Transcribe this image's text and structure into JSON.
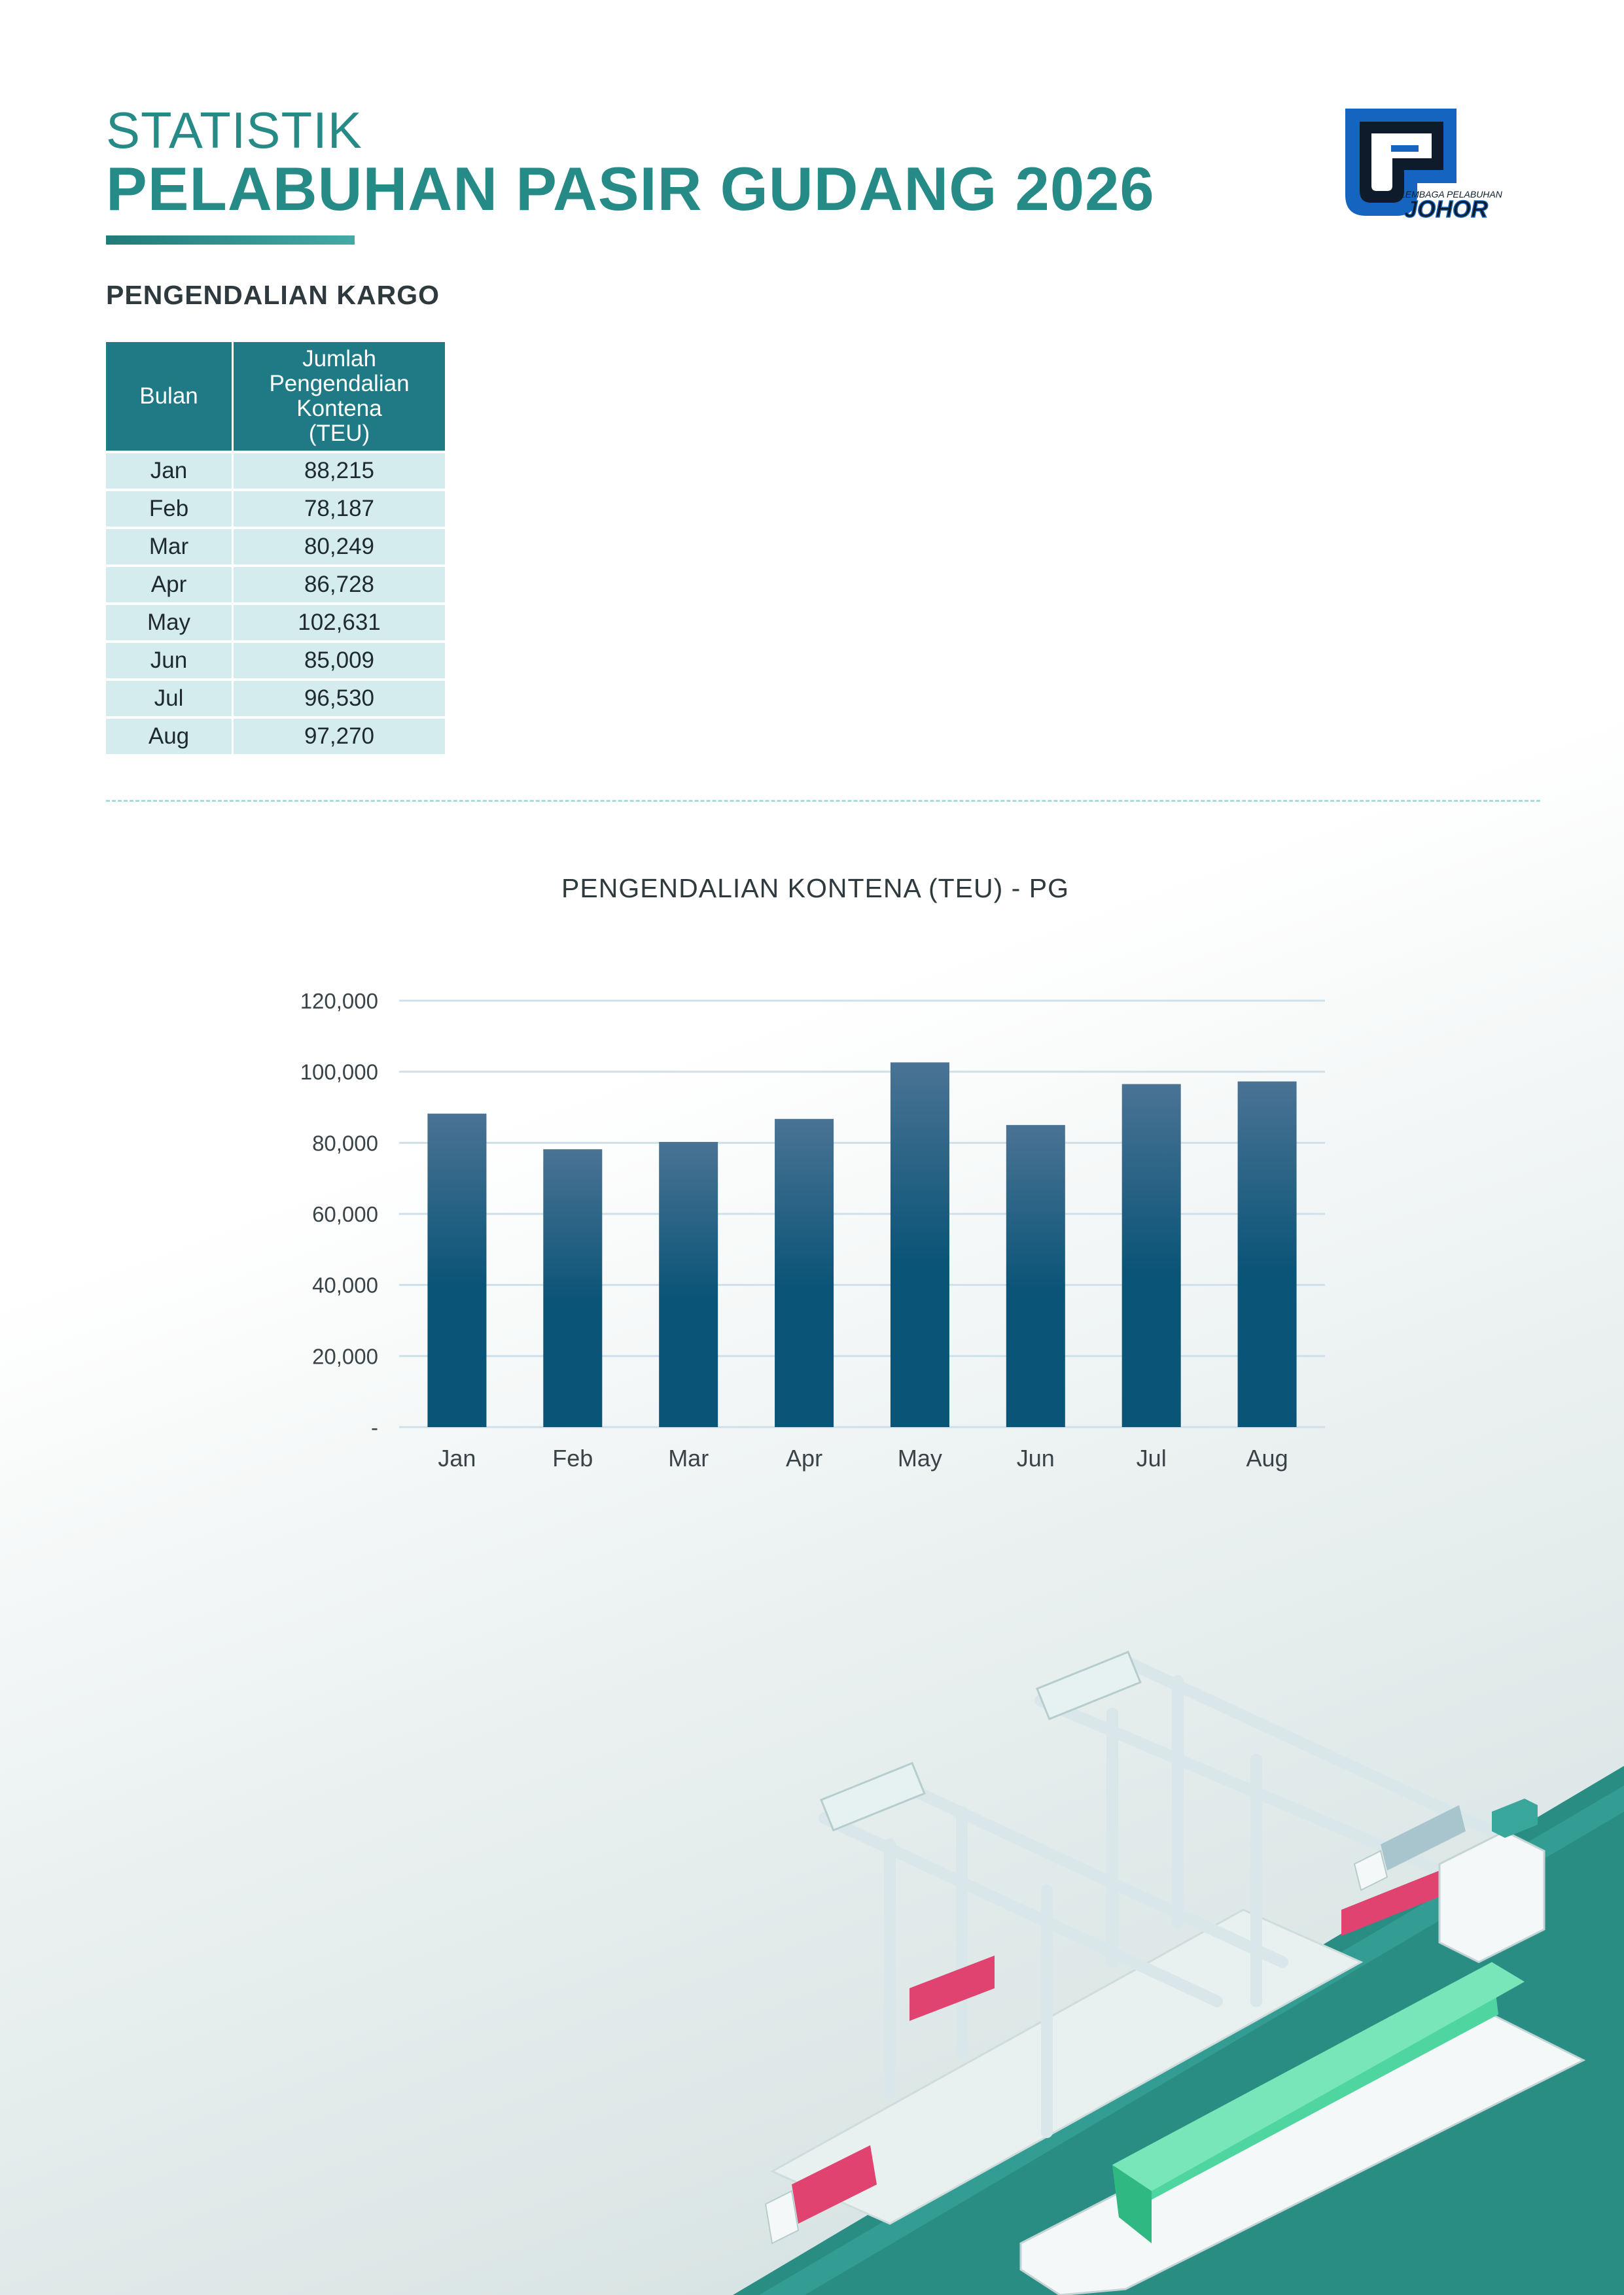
{
  "header": {
    "title_top": "STATISTIK",
    "title_main": "PELABUHAN PASIR GUDANG 2026"
  },
  "logo": {
    "text_small": "LEMBAGA PELABUHAN",
    "text_big": "JOHOR",
    "color_primary": "#1565c0",
    "color_dark": "#0d1b2a"
  },
  "section": {
    "heading": "PENGENDALIAN KARGO"
  },
  "table": {
    "headers": [
      "Bulan",
      "Jumlah Pengendalian Kontena (TEU)"
    ],
    "header_lines": [
      "Jumlah",
      "Pengendalian",
      "Kontena",
      "(TEU)"
    ],
    "rows": [
      [
        "Jan",
        "88,215"
      ],
      [
        "Feb",
        "78,187"
      ],
      [
        "Mar",
        "80,249"
      ],
      [
        "Apr",
        "86,728"
      ],
      [
        "May",
        "102,631"
      ],
      [
        "Jun",
        "85,009"
      ],
      [
        "Jul",
        "96,530"
      ],
      [
        "Aug",
        "97,270"
      ]
    ]
  },
  "chart_data": {
    "type": "bar",
    "title": "PENGENDALIAN KONTENA (TEU) - PG",
    "categories": [
      "Jan",
      "Feb",
      "Mar",
      "Apr",
      "May",
      "Jun",
      "Jul",
      "Aug"
    ],
    "values": [
      88215,
      78187,
      80249,
      86728,
      102631,
      85009,
      96530,
      97270
    ],
    "ylim": [
      0,
      120000
    ],
    "yticks": [
      0,
      20000,
      40000,
      60000,
      80000,
      100000,
      120000
    ],
    "ytick_labels": [
      "-",
      "20,000",
      "40,000",
      "60,000",
      "80,000",
      "100,000",
      "120,000"
    ],
    "xlabel": "",
    "ylabel": "",
    "grid": true,
    "bar_color_top": "#4a7394",
    "bar_color_bottom": "#0a5477"
  },
  "colors": {
    "accent": "#268a86",
    "table_header": "#1f7a85",
    "table_cell": "#d5ecee",
    "container_green": "#4fd6a0",
    "container_red": "#e0436f"
  }
}
